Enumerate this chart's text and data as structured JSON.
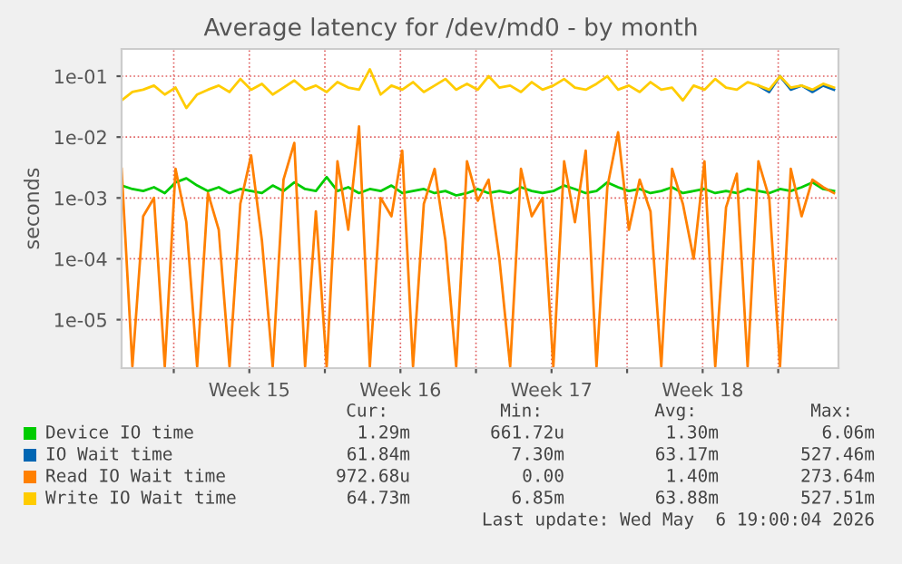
{
  "chart_data": {
    "type": "line",
    "title": "Average latency for /dev/md0 - by month",
    "ylabel": "seconds",
    "log": "y",
    "grid": true,
    "legend": "bottom",
    "xlim": [
      "2026-04-03T14:00",
      "2026-05-06T19:00"
    ],
    "xticks": [
      {
        "value": "2026-04-06",
        "label": null
      },
      {
        "value": "2026-04-09T12:00",
        "label": "Week 15"
      },
      {
        "value": "2026-04-13",
        "label": null
      },
      {
        "value": "2026-04-16T12:00",
        "label": "Week 16"
      },
      {
        "value": "2026-04-20",
        "label": null
      },
      {
        "value": "2026-04-23T12:00",
        "label": "Week 17"
      },
      {
        "value": "2026-04-27",
        "label": null
      },
      {
        "value": "2026-04-30T12:00",
        "label": "Week 18"
      },
      {
        "value": "2026-05-04",
        "label": null
      }
    ],
    "ylim": [
      1.6e-06,
      0.28
    ],
    "yticks": [
      {
        "value": 1e-05,
        "label": "1e-05"
      },
      {
        "value": 0.0001,
        "label": "1e-04"
      },
      {
        "value": 0.001,
        "label": "1e-03"
      },
      {
        "value": 0.01,
        "label": "1e-02"
      },
      {
        "value": 0.1,
        "label": "1e-01"
      }
    ],
    "x": [
      "2026-04-03T14:00",
      "2026-04-04T02:00",
      "2026-04-04T14:00",
      "2026-04-05T02:00",
      "2026-04-05T14:00",
      "2026-04-06T02:00",
      "2026-04-06T14:00",
      "2026-04-07T02:00",
      "2026-04-07T14:00",
      "2026-04-08T02:00",
      "2026-04-08T14:00",
      "2026-04-09T02:00",
      "2026-04-09T14:00",
      "2026-04-10T02:00",
      "2026-04-10T14:00",
      "2026-04-11T02:00",
      "2026-04-11T14:00",
      "2026-04-12T02:00",
      "2026-04-12T14:00",
      "2026-04-13T02:00",
      "2026-04-13T14:00",
      "2026-04-14T02:00",
      "2026-04-14T14:00",
      "2026-04-15T02:00",
      "2026-04-15T14:00",
      "2026-04-16T02:00",
      "2026-04-16T14:00",
      "2026-04-17T02:00",
      "2026-04-17T14:00",
      "2026-04-18T02:00",
      "2026-04-18T14:00",
      "2026-04-19T02:00",
      "2026-04-19T14:00",
      "2026-04-20T02:00",
      "2026-04-20T14:00",
      "2026-04-21T02:00",
      "2026-04-21T14:00",
      "2026-04-22T02:00",
      "2026-04-22T14:00",
      "2026-04-23T02:00",
      "2026-04-23T14:00",
      "2026-04-24T02:00",
      "2026-04-24T14:00",
      "2026-04-25T02:00",
      "2026-04-25T14:00",
      "2026-04-26T02:00",
      "2026-04-26T14:00",
      "2026-04-27T02:00",
      "2026-04-27T14:00",
      "2026-04-28T02:00",
      "2026-04-28T14:00",
      "2026-04-29T02:00",
      "2026-04-29T14:00",
      "2026-04-30T02:00",
      "2026-04-30T14:00",
      "2026-05-01T02:00",
      "2026-05-01T14:00",
      "2026-05-02T02:00",
      "2026-05-02T14:00",
      "2026-05-03T02:00",
      "2026-05-03T14:00",
      "2026-05-04T02:00",
      "2026-05-04T14:00",
      "2026-05-05T02:00",
      "2026-05-05T14:00",
      "2026-05-06T02:00",
      "2026-05-06T14:00"
    ],
    "series": [
      {
        "name": "Device IO time",
        "color": "#00cc00",
        "values": [
          0.0016,
          0.0014,
          0.0013,
          0.0015,
          0.0012,
          0.0018,
          0.0021,
          0.0016,
          0.0013,
          0.0015,
          0.0012,
          0.0014,
          0.0013,
          0.0012,
          0.0016,
          0.0013,
          0.0018,
          0.0014,
          0.0013,
          0.0022,
          0.0013,
          0.0015,
          0.0012,
          0.0014,
          0.0013,
          0.0016,
          0.0012,
          0.0013,
          0.0014,
          0.0012,
          0.0013,
          0.0011,
          0.0012,
          0.0014,
          0.0012,
          0.0013,
          0.0012,
          0.0015,
          0.0013,
          0.0012,
          0.0013,
          0.0016,
          0.0014,
          0.0012,
          0.0013,
          0.0018,
          0.0015,
          0.0013,
          0.0014,
          0.0012,
          0.0013,
          0.0015,
          0.0012,
          0.0013,
          0.0014,
          0.0012,
          0.0013,
          0.0012,
          0.0014,
          0.0013,
          0.0012,
          0.0014,
          0.0013,
          0.0015,
          0.0018,
          0.0014,
          0.0013
        ]
      },
      {
        "name": "IO Wait time",
        "color": "#0066b3",
        "values": [
          null,
          null,
          null,
          null,
          null,
          null,
          null,
          null,
          null,
          null,
          null,
          null,
          null,
          null,
          null,
          null,
          null,
          null,
          null,
          null,
          null,
          null,
          null,
          null,
          null,
          null,
          null,
          null,
          null,
          null,
          null,
          null,
          null,
          null,
          null,
          null,
          null,
          null,
          null,
          null,
          null,
          null,
          null,
          null,
          null,
          null,
          null,
          null,
          null,
          null,
          null,
          null,
          null,
          null,
          null,
          null,
          null,
          null,
          null,
          0.07,
          0.055,
          0.1,
          0.06,
          0.07,
          0.055,
          0.07,
          0.06
        ]
      },
      {
        "name": "Read IO Wait time",
        "color": "#ff8000",
        "values": [
          0.003,
          1.7e-06,
          0.0005,
          0.001,
          1.7e-06,
          0.003,
          0.0004,
          1.7e-06,
          0.0012,
          0.0003,
          1.7e-06,
          0.0008,
          0.005,
          0.0002,
          1.7e-06,
          0.002,
          0.008,
          1.7e-06,
          0.0006,
          1.7e-06,
          0.004,
          0.0003,
          0.015,
          1.7e-06,
          0.001,
          0.0005,
          0.006,
          1.7e-06,
          0.0008,
          0.003,
          0.0002,
          1.7e-06,
          0.004,
          0.0009,
          0.002,
          0.0001,
          1.7e-06,
          0.003,
          0.0005,
          0.001,
          1.7e-06,
          0.004,
          0.0004,
          0.006,
          1.7e-06,
          0.0015,
          0.012,
          0.0003,
          0.002,
          0.0006,
          1.7e-06,
          0.003,
          0.0008,
          0.0001,
          0.004,
          1.7e-06,
          0.0007,
          0.0025,
          1.7e-06,
          0.004,
          0.001,
          1.7e-06,
          0.003,
          0.0005,
          0.002,
          0.0015,
          0.0012
        ]
      },
      {
        "name": "Write IO Wait time",
        "color": "#ffcc00",
        "values": [
          0.04,
          0.055,
          0.06,
          0.07,
          0.05,
          0.065,
          0.03,
          0.05,
          0.06,
          0.07,
          0.055,
          0.09,
          0.06,
          0.075,
          0.05,
          0.065,
          0.085,
          0.06,
          0.07,
          0.055,
          0.08,
          0.065,
          0.06,
          0.13,
          0.05,
          0.07,
          0.06,
          0.08,
          0.055,
          0.07,
          0.09,
          0.06,
          0.075,
          0.06,
          0.1,
          0.065,
          0.07,
          0.055,
          0.08,
          0.06,
          0.07,
          0.09,
          0.065,
          0.06,
          0.075,
          0.1,
          0.06,
          0.07,
          0.055,
          0.08,
          0.06,
          0.065,
          0.04,
          0.07,
          0.06,
          0.09,
          0.065,
          0.06,
          0.08,
          0.07,
          0.06,
          0.1,
          0.065,
          0.07,
          0.06,
          0.075,
          0.065
        ]
      }
    ],
    "annotations": [
      "Cur:",
      "Min:",
      "Avg:",
      "Max:",
      "1.29m",
      "661.72u",
      "1.30m",
      "6.06m",
      "61.84m",
      "7.30m",
      "63.17m",
      "527.46m",
      "972.68u",
      "0.00",
      "1.40m",
      "273.64m",
      "64.73m",
      "6.85m",
      "63.88m",
      "527.51m",
      "Last update: Wed May  6 19:00:04 2026"
    ]
  }
}
